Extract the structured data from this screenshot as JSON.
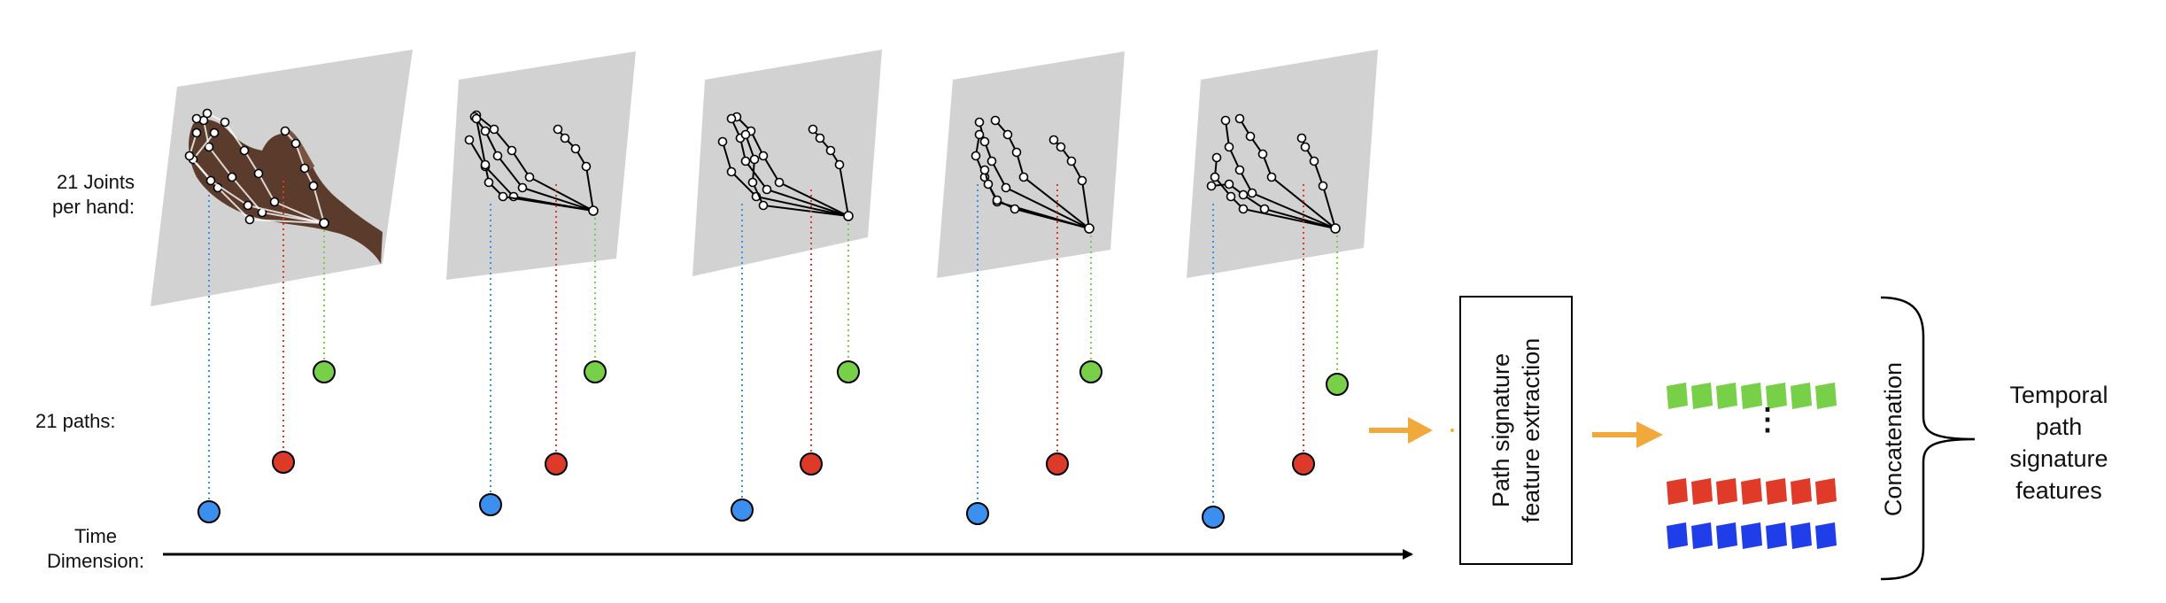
{
  "labels": {
    "joints_line1": "21 Joints",
    "joints_line2": "per hand:",
    "paths": "21 paths:",
    "time_line1": "Time",
    "time_line2": "Dimension:",
    "extraction_line1": "Path signature",
    "extraction_line2": "feature extraction",
    "concatenation": "Concatenation",
    "output_line1": "Temporal",
    "output_line2": "path",
    "output_line3": "signature",
    "output_line4": "features",
    "ellipsis": "⋮"
  },
  "frame_count": 5,
  "feature_rows": [
    "green",
    "red",
    "blue"
  ],
  "features_per_row": 7,
  "colors": {
    "frame_fill": "#d2d2d2",
    "path_blue": "#3a8fef",
    "path_red": "#dd3a2a",
    "path_green": "#78d048",
    "feature_green": "#78d048",
    "feature_red": "#e03a28",
    "feature_blue": "#1f3de8",
    "arrow_orange": "#f2a93b",
    "skin": "#5a3b2c"
  }
}
